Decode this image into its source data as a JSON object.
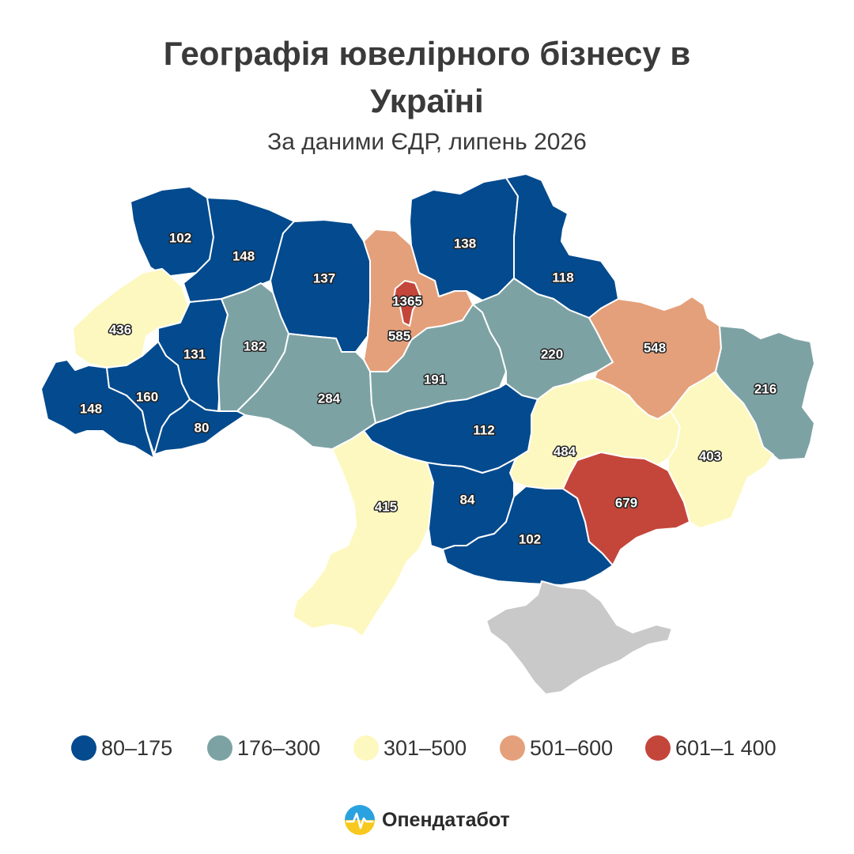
{
  "header": {
    "title_line1": "Географія ювелірного бізнесу в",
    "title_line2": "Україні",
    "subtitle": "За даними ЄДР, липень 2026"
  },
  "colors": {
    "bin_80_175": "#034a8e",
    "bin_176_300": "#7da2a4",
    "bin_301_500": "#fdf8bf",
    "bin_501_600": "#e4a07a",
    "bin_601_1400": "#c4463a",
    "crimea": "#c9c9ca",
    "border": "#ffffff"
  },
  "map": {
    "regions": [
      {
        "name": "volyn",
        "value": "102",
        "bin": "bin_80_175"
      },
      {
        "name": "rivne",
        "value": "148",
        "bin": "bin_80_175"
      },
      {
        "name": "zhytomyr",
        "value": "137",
        "bin": "bin_80_175"
      },
      {
        "name": "kyiv-oblast",
        "value": "585",
        "bin": "bin_501_600"
      },
      {
        "name": "kyiv-city",
        "value": "1365",
        "bin": "bin_601_1400"
      },
      {
        "name": "chernihiv",
        "value": "138",
        "bin": "bin_80_175"
      },
      {
        "name": "sumy",
        "value": "118",
        "bin": "bin_80_175"
      },
      {
        "name": "lviv",
        "value": "436",
        "bin": "bin_301_500"
      },
      {
        "name": "ternopil",
        "value": "131",
        "bin": "bin_80_175"
      },
      {
        "name": "khmelnytskyi",
        "value": "182",
        "bin": "bin_176_300"
      },
      {
        "name": "vinnytsia",
        "value": "284",
        "bin": "bin_176_300"
      },
      {
        "name": "cherkasy",
        "value": "191",
        "bin": "bin_176_300"
      },
      {
        "name": "poltava",
        "value": "220",
        "bin": "bin_176_300"
      },
      {
        "name": "kharkiv",
        "value": "548",
        "bin": "bin_501_600"
      },
      {
        "name": "luhansk",
        "value": "216",
        "bin": "bin_176_300"
      },
      {
        "name": "zakarpattia",
        "value": "148",
        "bin": "bin_80_175"
      },
      {
        "name": "ivano-frankivsk",
        "value": "160",
        "bin": "bin_80_175"
      },
      {
        "name": "chernivtsi",
        "value": "80",
        "bin": "bin_80_175"
      },
      {
        "name": "kirovohrad",
        "value": "112",
        "bin": "bin_80_175"
      },
      {
        "name": "dnipropetrovsk",
        "value": "484",
        "bin": "bin_301_500"
      },
      {
        "name": "donetsk",
        "value": "403",
        "bin": "bin_301_500"
      },
      {
        "name": "odesa",
        "value": "415",
        "bin": "bin_301_500"
      },
      {
        "name": "mykolaiv",
        "value": "84",
        "bin": "bin_80_175"
      },
      {
        "name": "kherson",
        "value": "102",
        "bin": "bin_80_175"
      },
      {
        "name": "zaporizhzhia",
        "value": "679",
        "bin": "bin_601_1400"
      },
      {
        "name": "crimea",
        "value": "",
        "bin": "crimea"
      }
    ]
  },
  "legend": {
    "items": [
      {
        "label": "80–175",
        "bin": "bin_80_175"
      },
      {
        "label": "176–300",
        "bin": "bin_176_300"
      },
      {
        "label": "301–500",
        "bin": "bin_301_500"
      },
      {
        "label": "501–600",
        "bin": "bin_501_600"
      },
      {
        "label": "601–1 400",
        "bin": "bin_601_1400"
      }
    ]
  },
  "brand": {
    "name": "Опендатабот",
    "logo_icon": "opendatabot-logo-icon"
  }
}
